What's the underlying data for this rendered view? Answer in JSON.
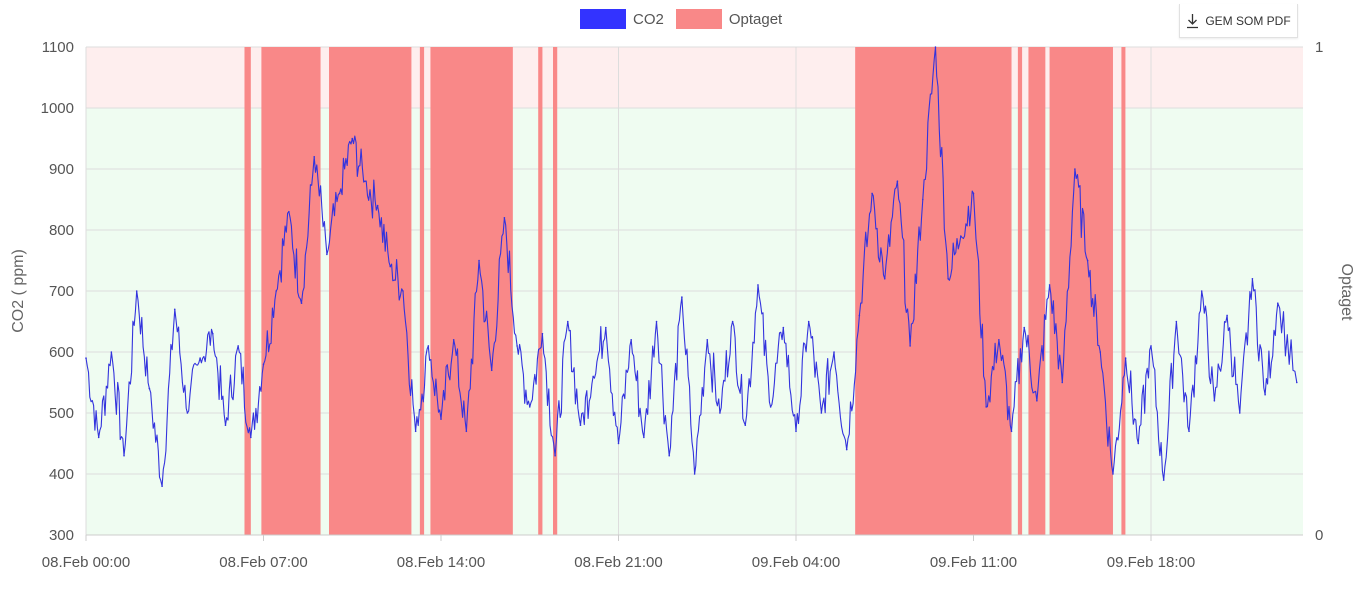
{
  "legend": [
    {
      "name": "CO2",
      "color": "#3333ff"
    },
    {
      "name": "Optaget",
      "color": "#f98888"
    }
  ],
  "toolbar": {
    "pdf_label": "GEM SOM PDF",
    "icon": "download-icon"
  },
  "chart_data": {
    "type": "line",
    "xlabel": "",
    "ylabel": "CO2 ( ppm)",
    "y2label": "Optaget",
    "ylim": [
      300,
      1100
    ],
    "y2lim": [
      0,
      1
    ],
    "y_ticks": [
      300,
      400,
      500,
      600,
      700,
      800,
      900,
      1000,
      1100
    ],
    "y2_ticks": [
      0,
      1
    ],
    "xlim": [
      "08.Feb 00:00",
      "09.Feb 23:45"
    ],
    "x_ticks": [
      "08.Feb 00:00",
      "08.Feb 07:00",
      "08.Feb 14:00",
      "08.Feb 21:00",
      "09.Feb 04:00",
      "09.Feb 11:00",
      "09.Feb 18:00"
    ],
    "grid": true,
    "legend_position": "top-center",
    "bands": [
      {
        "from": 300,
        "to": 1000,
        "color": "#effcf1"
      },
      {
        "from": 1000,
        "to": 1100,
        "color": "#feeeee"
      }
    ],
    "series": [
      {
        "name": "CO2",
        "type": "line",
        "color": "#3333dd",
        "points": [
          [
            "08.Feb 00:00",
            590
          ],
          [
            "08.Feb 00:30",
            460
          ],
          [
            "08.Feb 01:00",
            600
          ],
          [
            "08.Feb 01:30",
            430
          ],
          [
            "08.Feb 02:00",
            700
          ],
          [
            "08.Feb 02:30",
            540
          ],
          [
            "08.Feb 03:00",
            380
          ],
          [
            "08.Feb 03:30",
            670
          ],
          [
            "08.Feb 04:00",
            500
          ],
          [
            "08.Feb 04:30",
            590
          ],
          [
            "08.Feb 05:00",
            630
          ],
          [
            "08.Feb 05:30",
            480
          ],
          [
            "08.Feb 06:00",
            610
          ],
          [
            "08.Feb 06:30",
            460
          ],
          [
            "08.Feb 07:00",
            580
          ],
          [
            "08.Feb 07:30",
            700
          ],
          [
            "08.Feb 08:00",
            830
          ],
          [
            "08.Feb 08:30",
            680
          ],
          [
            "08.Feb 09:00",
            920
          ],
          [
            "08.Feb 09:30",
            760
          ],
          [
            "08.Feb 10:00",
            860
          ],
          [
            "08.Feb 10:30",
            950
          ],
          [
            "08.Feb 11:00",
            880
          ],
          [
            "08.Feb 11:30",
            840
          ],
          [
            "08.Feb 12:00",
            740
          ],
          [
            "08.Feb 12:30",
            700
          ],
          [
            "08.Feb 13:00",
            470
          ],
          [
            "08.Feb 13:30",
            610
          ],
          [
            "08.Feb 14:00",
            490
          ],
          [
            "08.Feb 14:30",
            620
          ],
          [
            "08.Feb 15:00",
            470
          ],
          [
            "08.Feb 15:30",
            750
          ],
          [
            "08.Feb 16:00",
            570
          ],
          [
            "08.Feb 16:30",
            820
          ],
          [
            "08.Feb 17:00",
            610
          ],
          [
            "08.Feb 17:30",
            510
          ],
          [
            "08.Feb 18:00",
            630
          ],
          [
            "08.Feb 18:30",
            430
          ],
          [
            "08.Feb 19:00",
            650
          ],
          [
            "08.Feb 19:30",
            480
          ],
          [
            "08.Feb 20:00",
            560
          ],
          [
            "08.Feb 20:30",
            640
          ],
          [
            "08.Feb 21:00",
            450
          ],
          [
            "08.Feb 21:30",
            620
          ],
          [
            "08.Feb 22:00",
            460
          ],
          [
            "08.Feb 22:30",
            650
          ],
          [
            "08.Feb 23:00",
            430
          ],
          [
            "08.Feb 23:30",
            690
          ],
          [
            "09.Feb 00:00",
            400
          ],
          [
            "09.Feb 00:30",
            620
          ],
          [
            "09.Feb 01:00",
            500
          ],
          [
            "09.Feb 01:30",
            650
          ],
          [
            "09.Feb 02:00",
            480
          ],
          [
            "09.Feb 02:30",
            710
          ],
          [
            "09.Feb 03:00",
            510
          ],
          [
            "09.Feb 03:30",
            640
          ],
          [
            "09.Feb 04:00",
            470
          ],
          [
            "09.Feb 04:30",
            650
          ],
          [
            "09.Feb 05:00",
            500
          ],
          [
            "09.Feb 05:30",
            600
          ],
          [
            "09.Feb 06:00",
            440
          ],
          [
            "09.Feb 06:30",
            660
          ],
          [
            "09.Feb 07:00",
            860
          ],
          [
            "09.Feb 07:30",
            720
          ],
          [
            "09.Feb 08:00",
            880
          ],
          [
            "09.Feb 08:30",
            610
          ],
          [
            "09.Feb 09:00",
            850
          ],
          [
            "09.Feb 09:30",
            1100
          ],
          [
            "09.Feb 10:00",
            720
          ],
          [
            "09.Feb 10:30",
            790
          ],
          [
            "09.Feb 11:00",
            860
          ],
          [
            "09.Feb 11:30",
            510
          ],
          [
            "09.Feb 12:00",
            620
          ],
          [
            "09.Feb 12:30",
            470
          ],
          [
            "09.Feb 13:00",
            640
          ],
          [
            "09.Feb 13:30",
            520
          ],
          [
            "09.Feb 14:00",
            710
          ],
          [
            "09.Feb 14:30",
            550
          ],
          [
            "09.Feb 15:00",
            900
          ],
          [
            "09.Feb 15:30",
            750
          ],
          [
            "09.Feb 16:00",
            600
          ],
          [
            "09.Feb 16:30",
            400
          ],
          [
            "09.Feb 17:00",
            590
          ],
          [
            "09.Feb 17:30",
            450
          ],
          [
            "09.Feb 18:00",
            610
          ],
          [
            "09.Feb 18:30",
            390
          ],
          [
            "09.Feb 19:00",
            650
          ],
          [
            "09.Feb 19:30",
            470
          ],
          [
            "09.Feb 20:00",
            700
          ],
          [
            "09.Feb 20:30",
            520
          ],
          [
            "09.Feb 21:00",
            660
          ],
          [
            "09.Feb 21:30",
            500
          ],
          [
            "09.Feb 22:00",
            720
          ],
          [
            "09.Feb 22:30",
            530
          ],
          [
            "09.Feb 23:00",
            680
          ],
          [
            "09.Feb 23:45",
            550
          ]
        ]
      },
      {
        "name": "Optaget",
        "type": "occupancy",
        "color": "#f98888",
        "value": 1,
        "intervals": [
          [
            "08.Feb 06:15",
            "08.Feb 06:30"
          ],
          [
            "08.Feb 06:55",
            "08.Feb 09:15"
          ],
          [
            "08.Feb 09:35",
            "08.Feb 12:50"
          ],
          [
            "08.Feb 13:10",
            "08.Feb 13:20"
          ],
          [
            "08.Feb 13:35",
            "08.Feb 16:50"
          ],
          [
            "08.Feb 17:50",
            "08.Feb 18:00"
          ],
          [
            "08.Feb 18:25",
            "08.Feb 18:35"
          ],
          [
            "09.Feb 06:20",
            "09.Feb 12:30"
          ],
          [
            "09.Feb 12:45",
            "09.Feb 12:55"
          ],
          [
            "09.Feb 13:10",
            "09.Feb 13:50"
          ],
          [
            "09.Feb 14:00",
            "09.Feb 16:30"
          ],
          [
            "09.Feb 16:50",
            "09.Feb 16:55"
          ]
        ]
      }
    ]
  }
}
